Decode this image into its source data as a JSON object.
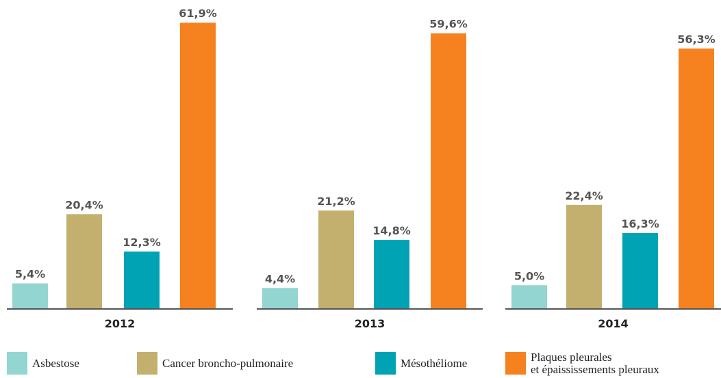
{
  "chart_data": {
    "type": "bar",
    "categories": [
      "2012",
      "2013",
      "2014"
    ],
    "series": [
      {
        "name": "Asbestose",
        "color": "#93d5d0",
        "values": [
          5.4,
          4.4,
          5.0
        ],
        "value_labels": [
          "5,4%",
          "4,4%",
          "5,0%"
        ]
      },
      {
        "name": "Cancer broncho-pulmonaire",
        "color": "#c4b06e",
        "values": [
          20.4,
          21.2,
          22.4
        ],
        "value_labels": [
          "20,4%",
          "21,2%",
          "22,4%"
        ]
      },
      {
        "name": "Mésothéliome",
        "color": "#00a3b4",
        "values": [
          12.3,
          14.8,
          16.3
        ],
        "value_labels": [
          "12,3%",
          "14,8%",
          "16,3%"
        ]
      },
      {
        "name": "Plaques pleurales\net épaississements pleuraux",
        "color": "#f5821f",
        "values": [
          61.9,
          59.6,
          56.3
        ],
        "value_labels": [
          "61,9%",
          "59,6%",
          "56,3%"
        ]
      }
    ]
  }
}
